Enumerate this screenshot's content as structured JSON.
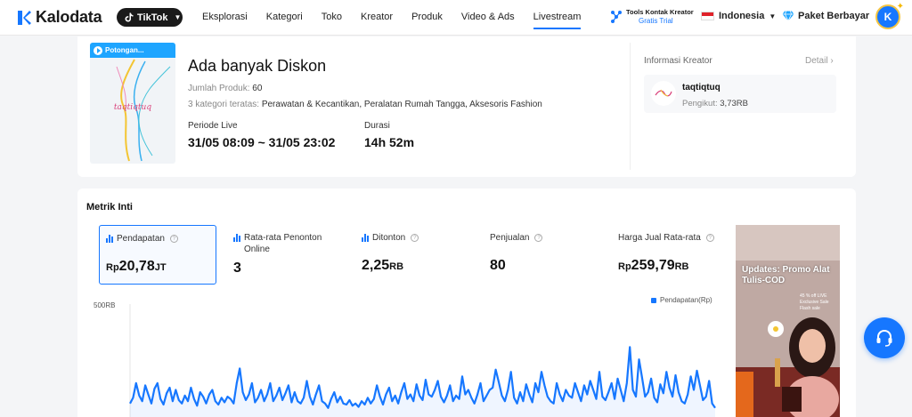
{
  "header": {
    "brand": "Kalodata",
    "platform": "TikTok",
    "nav": [
      "Eksplorasi",
      "Kategori",
      "Toko",
      "Kreator",
      "Produk",
      "Video & Ads",
      "Livestream"
    ],
    "active_nav": "Livestream",
    "tools_title": "Tools Kontak Kreator",
    "tools_trial": "Gratis Trial",
    "language": "Indonesia",
    "plan": "Paket Berbayar",
    "avatar_initial": "K"
  },
  "live": {
    "thumb_tag": "Potongan...",
    "thumb_text": "taqtiqtuq",
    "title": "Ada banyak Diskon",
    "products_label": "Jumlah Produk:",
    "products_value": "60",
    "categories_label": "3 kategori teratas:",
    "categories_value": "Perawatan & Kecantikan, Peralatan Rumah Tangga, Aksesoris Fashion",
    "period_label": "Periode Live",
    "period_value": "31/05 08:09 ~ 31/05 23:02",
    "duration_label": "Durasi",
    "duration_value": "14h 52m"
  },
  "creator": {
    "section_title": "Informasi Kreator",
    "detail_label": "Detail",
    "name": "taqtiqtuq",
    "followers_label": "Pengikut:",
    "followers_value": "3,73RB"
  },
  "metrics": {
    "title": "Metrik Inti",
    "items": [
      {
        "label": "Pendapatan",
        "prefix": "Rp",
        "value": "20,78",
        "unit": "JT",
        "selected": true,
        "bar_icon": true
      },
      {
        "label": "Rata-rata Penonton Online",
        "prefix": "",
        "value": "3",
        "unit": "",
        "selected": false,
        "bar_icon": true
      },
      {
        "label": "Ditonton",
        "prefix": "",
        "value": "2,25",
        "unit": "RB",
        "selected": false,
        "bar_icon": true
      },
      {
        "label": "Penjualan",
        "prefix": "",
        "value": "80",
        "unit": "",
        "selected": false,
        "bar_icon": false
      },
      {
        "label": "Harga Jual Rata-rata",
        "prefix": "Rp",
        "value": "259,79",
        "unit": "RB",
        "selected": false,
        "bar_icon": false
      }
    ]
  },
  "video_overlay": {
    "promo": "Updates: Promo Alat Tulis-COD",
    "note": "45 % off LIVE Exclusive Sale Flash sale"
  },
  "chart_data": {
    "type": "area",
    "ylabel": "500RB",
    "series": [
      {
        "name": "Pendapatan(Rp)",
        "color": "#1677ff"
      }
    ],
    "ylim": [
      0,
      500000
    ],
    "values": [
      60000,
      85000,
      150000,
      95000,
      70000,
      140000,
      100000,
      60000,
      125000,
      150000,
      80000,
      55000,
      105000,
      130000,
      70000,
      120000,
      75000,
      60000,
      95000,
      70000,
      130000,
      80000,
      50000,
      110000,
      90000,
      60000,
      100000,
      120000,
      70000,
      55000,
      85000,
      65000,
      90000,
      80000,
      60000,
      150000,
      215000,
      110000,
      75000,
      100000,
      150000,
      65000,
      85000,
      120000,
      70000,
      100000,
      150000,
      70000,
      95000,
      130000,
      75000,
      105000,
      140000,
      65000,
      110000,
      70000,
      60000,
      85000,
      160000,
      90000,
      55000,
      100000,
      140000,
      70000,
      60000,
      40000,
      80000,
      110000,
      65000,
      90000,
      60000,
      55000,
      75000,
      50000,
      60000,
      45000,
      70000,
      55000,
      85000,
      60000,
      80000,
      140000,
      90000,
      55000,
      100000,
      130000,
      70000,
      95000,
      60000,
      110000,
      150000,
      80000,
      100000,
      70000,
      145000,
      95000,
      75000,
      165000,
      100000,
      90000,
      120000,
      160000,
      90000,
      65000,
      95000,
      140000,
      70000,
      95000,
      80000,
      180000,
      100000,
      120000,
      85000,
      60000,
      100000,
      150000,
      70000,
      95000,
      120000,
      130000,
      210000,
      155000,
      95000,
      70000,
      120000,
      200000,
      85000,
      60000,
      110000,
      70000,
      145000,
      100000,
      65000,
      150000,
      110000,
      200000,
      140000,
      90000,
      70000,
      60000,
      150000,
      100000,
      70000,
      120000,
      95000,
      85000,
      150000,
      110000,
      70000,
      140000,
      100000,
      160000,
      120000,
      80000,
      200000,
      90000,
      75000,
      110000,
      150000,
      80000,
      170000,
      120000,
      70000,
      150000,
      310000,
      120000,
      90000,
      255000,
      175000,
      90000,
      110000,
      170000,
      85000,
      65000,
      145000,
      105000,
      200000,
      130000,
      90000,
      185000,
      110000,
      70000,
      60000,
      100000,
      180000,
      120000,
      205000,
      140000,
      75000,
      90000,
      160000,
      60000,
      40000
    ]
  }
}
